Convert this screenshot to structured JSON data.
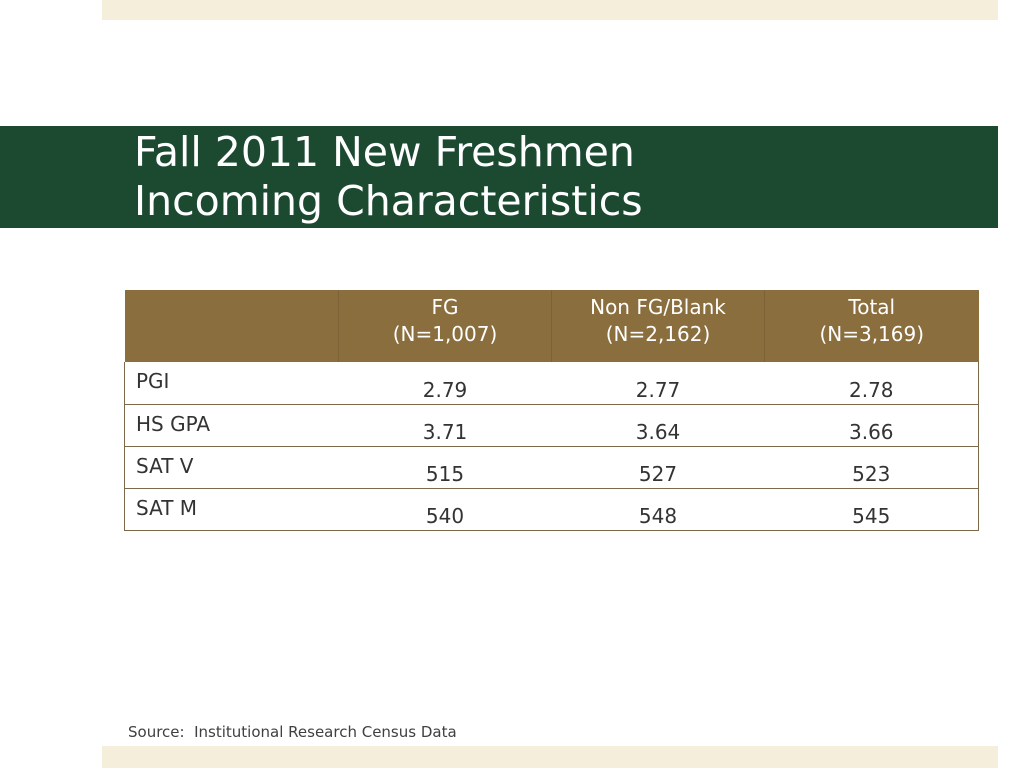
{
  "slide": {
    "title_line1": "Fall 2011 New Freshmen",
    "title_line2": "Incoming Characteristics",
    "accent_color": "#1b4a31",
    "header_color": "#8a6e3e",
    "band_color": "#f4eedb"
  },
  "table": {
    "headers": [
      {
        "line1": "",
        "line2": ""
      },
      {
        "line1": "FG",
        "line2": "(N=1,007)"
      },
      {
        "line1": "Non FG/Blank",
        "line2": "(N=2,162)"
      },
      {
        "line1": "Total",
        "line2": "(N=3,169)"
      }
    ],
    "rows": [
      {
        "label": "PGI",
        "values": [
          "2.79",
          "2.77",
          "2.78"
        ]
      },
      {
        "label": "HS GPA",
        "values": [
          "3.71",
          "3.64",
          "3.66"
        ]
      },
      {
        "label": "SAT V",
        "values": [
          "515",
          "527",
          "523"
        ]
      },
      {
        "label": "SAT M",
        "values": [
          "540",
          "548",
          "545"
        ]
      }
    ]
  },
  "footer": {
    "source": "Source:  Institutional Research Census Data"
  }
}
